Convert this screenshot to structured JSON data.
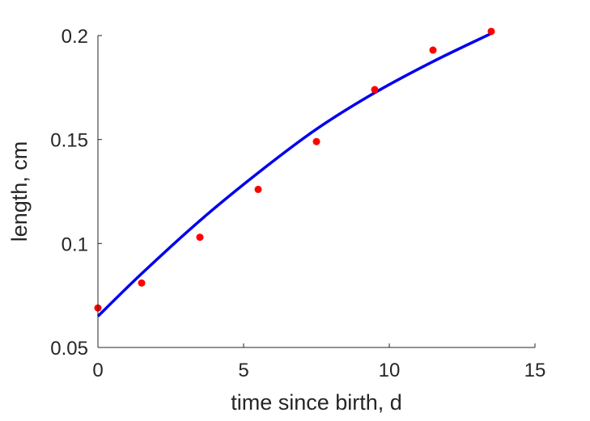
{
  "chart_data": {
    "type": "scatter",
    "title": "",
    "xlabel": "time since birth, d",
    "ylabel": "length, cm",
    "xlim": [
      0,
      15
    ],
    "ylim": [
      0.05,
      0.2
    ],
    "xticks": [
      0,
      5,
      10,
      15
    ],
    "xtick_labels": [
      "0",
      "5",
      "10",
      "15"
    ],
    "yticks": [
      0.05,
      0.1,
      0.15,
      0.2
    ],
    "ytick_labels": [
      "0.05",
      "0.1",
      "0.15",
      "0.2"
    ],
    "grid": false,
    "series": [
      {
        "kind": "scatter",
        "color": "#ff0000",
        "x": [
          0,
          1.5,
          3.5,
          5.5,
          7.5,
          9.5,
          11.5,
          13.5
        ],
        "y": [
          0.069,
          0.081,
          0.103,
          0.126,
          0.149,
          0.174,
          0.193,
          0.202
        ]
      },
      {
        "kind": "line",
        "color": "#0000ee",
        "x": [
          0,
          1.5,
          3.5,
          5.5,
          7.5,
          9.5,
          11.5,
          13.5
        ],
        "y": [
          0.065,
          0.0855,
          0.111,
          0.134,
          0.155,
          0.1725,
          0.1875,
          0.201
        ]
      }
    ]
  }
}
